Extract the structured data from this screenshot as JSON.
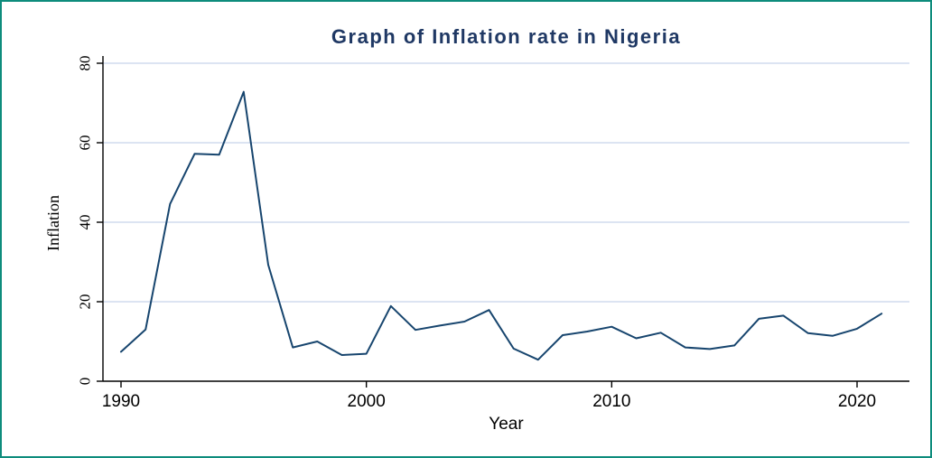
{
  "frame": {
    "border_color": "#0e8c7c",
    "background": "#ffffff"
  },
  "chart_data": {
    "type": "line",
    "title": "Graph of Inflation rate in Nigeria",
    "xlabel": "Year",
    "ylabel": "Inflation",
    "x": [
      1990,
      1991,
      1992,
      1993,
      1994,
      1995,
      1996,
      1997,
      1998,
      1999,
      2000,
      2001,
      2002,
      2003,
      2004,
      2005,
      2006,
      2007,
      2008,
      2009,
      2010,
      2011,
      2012,
      2013,
      2014,
      2015,
      2016,
      2017,
      2018,
      2019,
      2020,
      2021
    ],
    "series": [
      {
        "name": "Inflation",
        "values": [
          7.4,
          13.0,
          44.6,
          57.2,
          57.0,
          72.8,
          29.3,
          8.5,
          10.0,
          6.6,
          6.9,
          18.9,
          12.9,
          14.0,
          15.0,
          17.9,
          8.2,
          5.4,
          11.6,
          12.5,
          13.7,
          10.8,
          12.2,
          8.5,
          8.1,
          9.0,
          15.7,
          16.5,
          12.1,
          11.4,
          13.2,
          17.0
        ]
      }
    ],
    "xticks": [
      1990,
      2000,
      2010,
      2020
    ],
    "yticks": [
      0,
      20,
      40,
      60,
      80
    ],
    "xlim": [
      1990,
      2021
    ],
    "ylim": [
      0,
      80
    ],
    "grid": "horizontal",
    "legend": "none",
    "line_color": "#17456e",
    "grid_color": "#c6d3ea",
    "axis_color": "#000000",
    "title_color": "#1f3864"
  }
}
